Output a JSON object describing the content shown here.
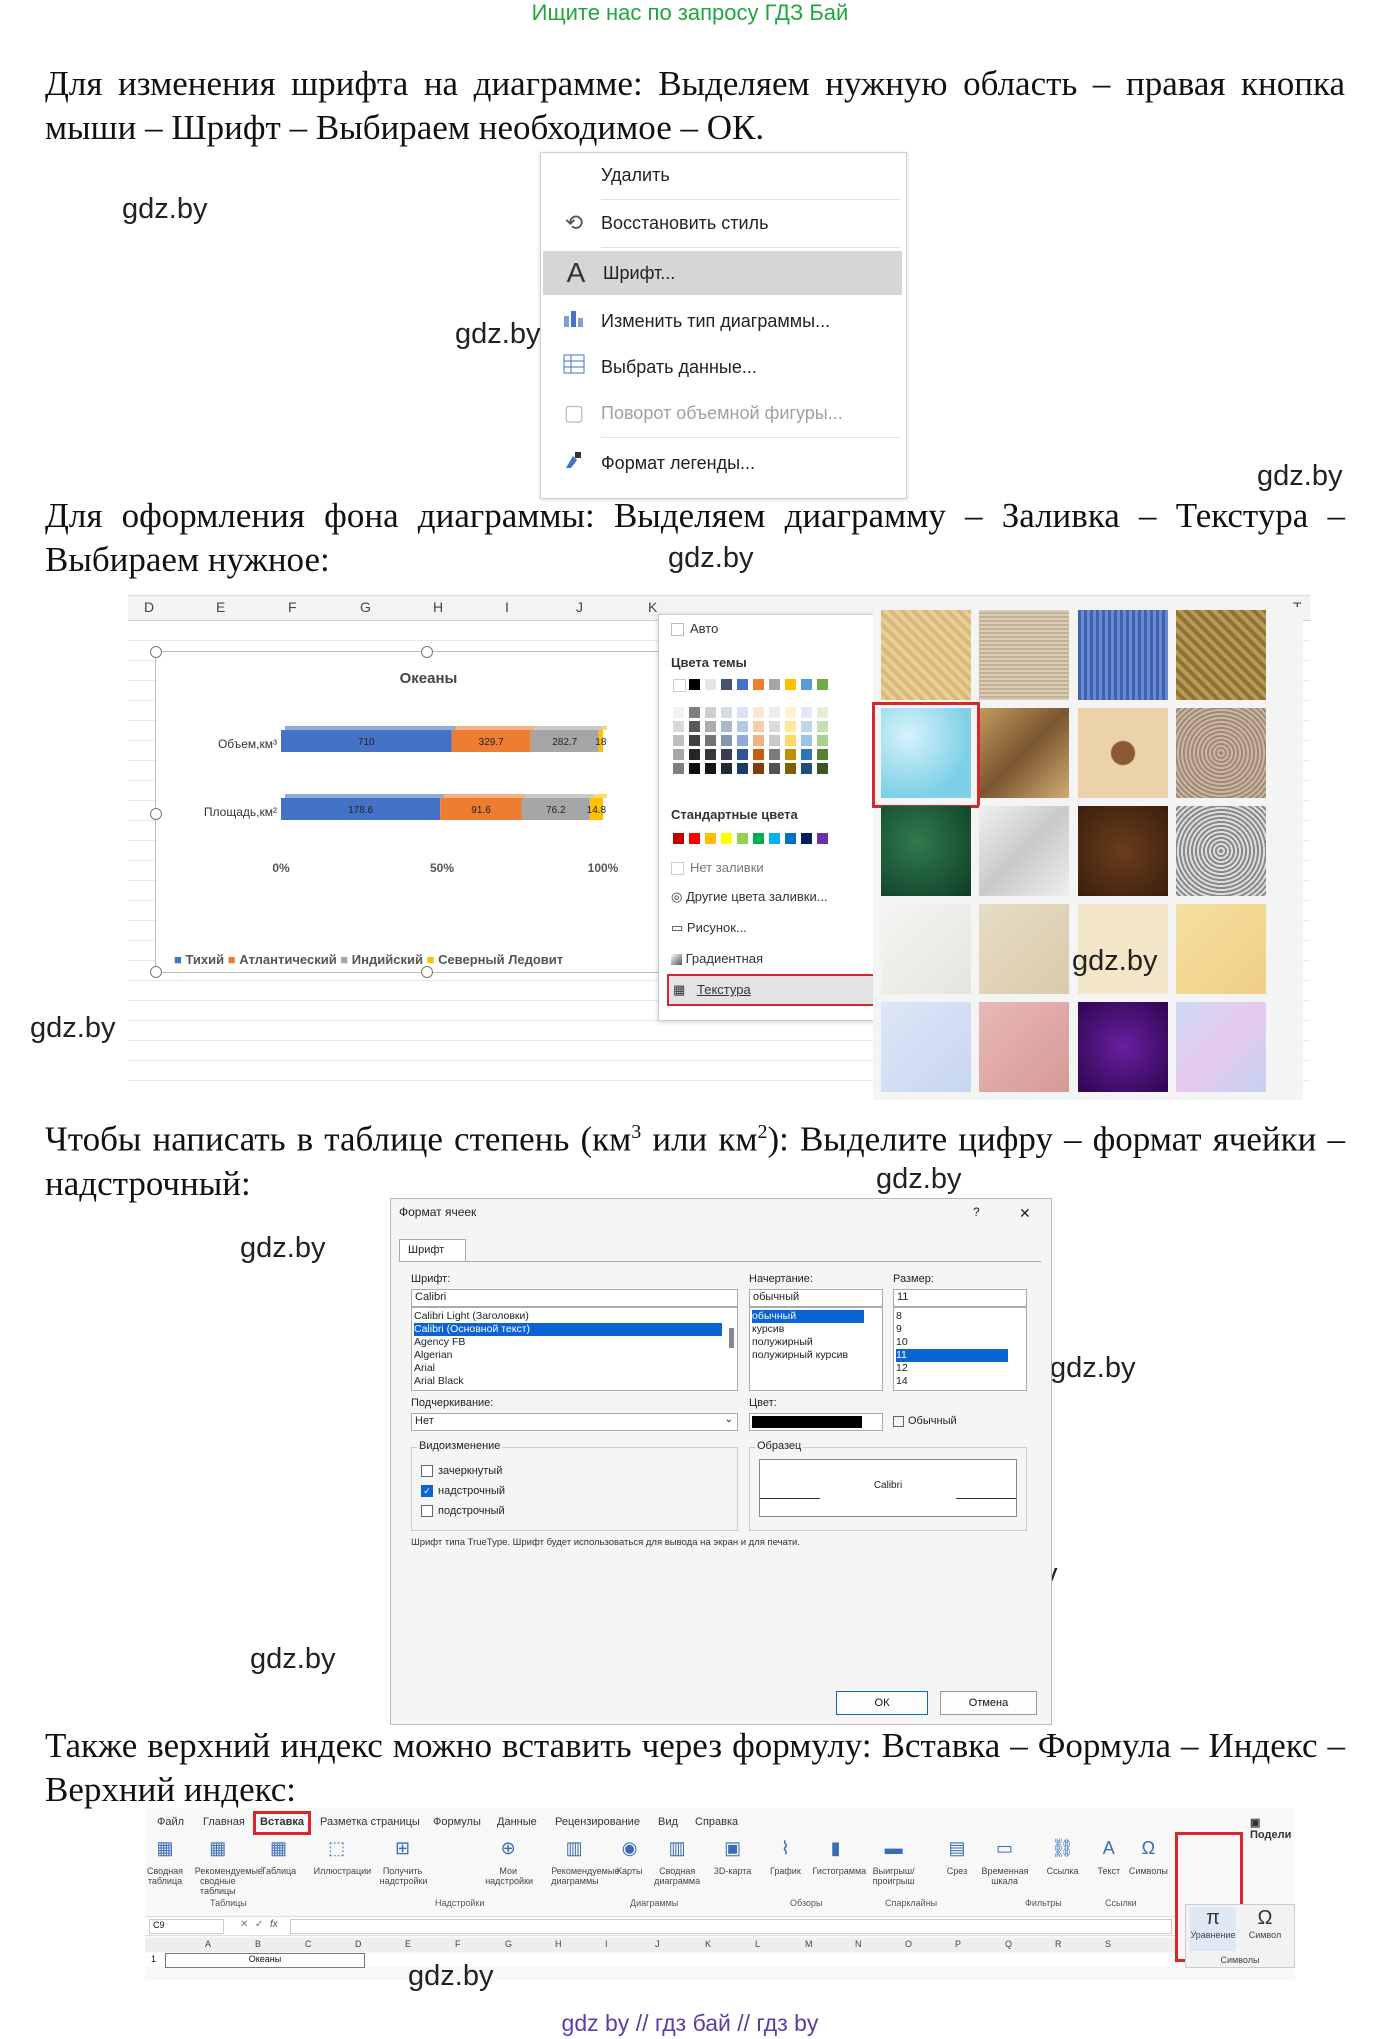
{
  "banner": "Ищите нас по запросу ГДЗ Бай",
  "p1": "Для изменения шрифта на диаграмме: Выделяем нужную область – правая кнопка мыши – Шрифт – Выбираем необходимое – ОК.",
  "p2": "Для оформления фона диаграммы: Выделяем диаграмму – Заливка – Текстура – Выбираем нужное:",
  "p3a": "Чтобы написать в таблице степень (км",
  "p3sup1": "3",
  "p3b": " или км",
  "p3sup2": "2",
  "p3c": "): Выделите цифру – формат ячейки – надстрочный:",
  "p4": "Также верхний индекс можно вставить через формулу: Вставка – Формула – Индекс – Верхний индекс:",
  "watermark": "gdz.by",
  "footer": "gdz by  //  гдз бай  //  гдз by",
  "context_menu": {
    "items": [
      {
        "label": "Удалить",
        "icon": "none"
      },
      {
        "label": "Восстановить стиль",
        "icon": "reset-style-icon"
      },
      {
        "label": "Шрифт...",
        "icon": "font-icon",
        "selected": true
      },
      {
        "label": "Изменить тип диаграммы...",
        "icon": "chart-type-icon"
      },
      {
        "label": "Выбрать данные...",
        "icon": "select-data-icon"
      },
      {
        "label": "Поворот объемной фигуры...",
        "icon": "rotate-3d-icon",
        "disabled": true
      },
      {
        "label": "Формат легенды...",
        "icon": "format-legend-icon"
      }
    ]
  },
  "excel2": {
    "columns": [
      "D",
      "E",
      "F",
      "G",
      "H",
      "I",
      "J",
      "K",
      "T"
    ],
    "chart_data": {
      "type": "bar",
      "title": "Океаны",
      "categories": [
        "Объем,км³",
        "Площадь,км²"
      ],
      "series": [
        {
          "name": "Тихий",
          "values": [
            710,
            178.6
          ],
          "color": "#4472c4"
        },
        {
          "name": "Атлантический",
          "values": [
            329.7,
            91.6
          ],
          "color": "#ed7d31"
        },
        {
          "name": "Индийский",
          "values": [
            282.7,
            76.2
          ],
          "color": "#a5a5a5"
        },
        {
          "name": "Северный Ледовитый",
          "values": [
            18,
            14.8
          ],
          "color": "#ffc000"
        }
      ],
      "data_labels": [
        [
          "710",
          "329.7",
          "282.7",
          "18"
        ],
        [
          "178.6",
          "91.6",
          "76.2",
          "14.8"
        ]
      ],
      "xticks": [
        "0%",
        "50%",
        "100%"
      ],
      "legend_text": "Тихий ■ Атлантический ■ Индийский ■ Северный Ледовит"
    },
    "fill_menu": {
      "auto": "Авто",
      "theme_colors": "Цвета темы",
      "standard_colors": "Стандартные цвета",
      "no_fill": "Нет заливки",
      "more_colors": "Другие цвета заливки...",
      "picture": "Рисунок...",
      "gradient": "Градиентная",
      "texture": "Текстура"
    }
  },
  "format_dialog": {
    "title": "Формат ячеек",
    "help": "?",
    "close": "✕",
    "tab": "Шрифт",
    "font_label": "Шрифт:",
    "font_value": "Calibri",
    "fonts": [
      "Calibri Light (Заголовки)",
      "Calibri (Основной текст)",
      "Agency FB",
      "Algerian",
      "Arial",
      "Arial Black"
    ],
    "style_label": "Начертание:",
    "style_value": "обычный",
    "styles": [
      "обычный",
      "курсив",
      "полужирный",
      "полужирный курсив"
    ],
    "size_label": "Размер:",
    "size_value": "11",
    "sizes": [
      "8",
      "9",
      "10",
      "11",
      "12",
      "14"
    ],
    "underline_label": "Подчеркивание:",
    "underline_value": "Нет",
    "color_label": "Цвет:",
    "normal_label": "Обычный",
    "effects_label": "Видоизменение",
    "effects": [
      "зачеркнутый",
      "надстрочный",
      "подстрочный"
    ],
    "sample_label": "Образец",
    "sample_text": "Calibri",
    "note": "Шрифт типа TrueType. Шрифт будет использоваться для вывода на экран и для печати.",
    "ok": "ОК",
    "cancel": "Отмена"
  },
  "ribbon": {
    "tabs": [
      "Файл",
      "Главная",
      "Вставка",
      "Разметка страницы",
      "Формулы",
      "Данные",
      "Рецензирование",
      "Вид",
      "Справка"
    ],
    "share": "Подели",
    "buttons": [
      "Сводная таблица",
      "Рекомендуемые сводные таблицы",
      "Таблица",
      "Иллюстрации",
      "Получить надстройки",
      "Мои надстройки",
      "Рекомендуемые диаграммы",
      "Карты",
      "Сводная диаграмма",
      "3D-карта",
      "График",
      "Гистограмма",
      "Выигрыш/проигрыш",
      "Срез",
      "Временная шкала",
      "Ссылка",
      "Текст",
      "Символы"
    ],
    "groups": [
      "Таблицы",
      "Надстройки",
      "Диаграммы",
      "Обзоры",
      "Спарклайны",
      "Фильтры",
      "Ссылки"
    ],
    "cell_ref": "C9",
    "fx": "fx",
    "grid_cols": [
      "A",
      "B",
      "C",
      "D",
      "E",
      "F",
      "G",
      "H",
      "I",
      "J",
      "K",
      "L",
      "M",
      "N",
      "O",
      "P",
      "Q",
      "R",
      "S"
    ],
    "row1": "1",
    "cell_text": "Океаны",
    "eq_label": "Уравнение",
    "sym_label": "Символ",
    "sym_group": "Символы"
  }
}
